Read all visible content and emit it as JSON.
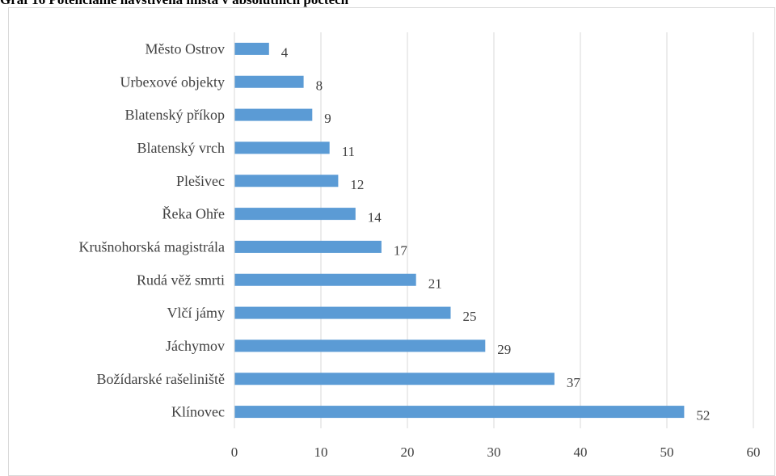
{
  "chart_data": {
    "type": "bar",
    "orientation": "horizontal",
    "title": "Graf 16 Potenciálně navštívená místa v absolutních počtech",
    "categories": [
      "Klínovec",
      "Božídarské rašeliniště",
      "Jáchymov",
      "Vlčí jámy",
      "Rudá věž smrti",
      "Krušnohorská magistrála",
      "Řeka Ohře",
      "Plešivec",
      "Blatenský vrch",
      "Blatenský příkop",
      "Urbexové objekty",
      "Město Ostrov"
    ],
    "values": [
      52,
      37,
      29,
      25,
      21,
      17,
      14,
      12,
      11,
      9,
      8,
      4
    ],
    "xlim": [
      0,
      60
    ],
    "x_ticks": [
      0,
      10,
      20,
      30,
      40,
      50,
      60
    ],
    "grid": "vertical",
    "legend": "none",
    "bar_color": "#5b9bd5",
    "grid_color": "#d9d9d9",
    "text_color": "#404040"
  }
}
